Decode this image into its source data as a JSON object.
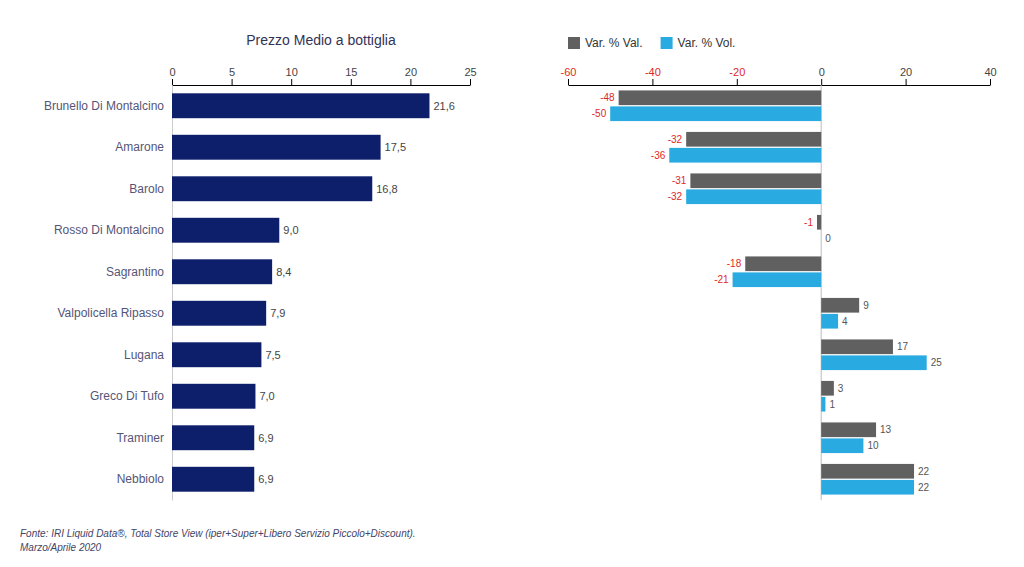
{
  "chart_data": [
    {
      "type": "bar",
      "orientation": "horizontal",
      "title": "Prezzo Medio a bottiglia",
      "categories": [
        "Brunello Di Montalcino",
        "Amarone",
        "Barolo",
        "Rosso Di Montalcino",
        "Sagrantino",
        "Valpolicella Ripasso",
        "Lugana",
        "Greco Di Tufo",
        "Traminer",
        "Nebbiolo"
      ],
      "values": [
        21.6,
        17.5,
        16.8,
        9.0,
        8.4,
        7.9,
        7.5,
        7.0,
        6.9,
        6.9
      ],
      "value_labels": [
        "21,6",
        "17,5",
        "16,8",
        "9,0",
        "8,4",
        "7,9",
        "7,5",
        "7,0",
        "6,9",
        "6,9"
      ],
      "data_labels": true,
      "color": "#0d1f6b",
      "xlim": [
        0,
        25
      ],
      "xticks": [
        0,
        5,
        10,
        15,
        20,
        25
      ],
      "annotations": [
        "Fonte: IRI Liquid Data®, Total Store View (iper+Super+Libero Servizio Piccolo+Discount).",
        "Marzo/Aprile 2020"
      ]
    },
    {
      "type": "bar",
      "orientation": "horizontal",
      "categories": [
        null,
        null,
        null,
        null,
        null,
        null,
        null,
        null,
        null,
        null
      ],
      "series": [
        {
          "name": "Var. % Val.",
          "color": "#606060",
          "values": [
            -48,
            -32,
            -31,
            -1,
            -18,
            9,
            17,
            3,
            13,
            22
          ]
        },
        {
          "name": "Var. % Vol.",
          "color": "#29abe2",
          "values": [
            -50,
            -36,
            -32,
            0,
            -21,
            4,
            25,
            1,
            10,
            22
          ]
        }
      ],
      "data_labels": true,
      "legend": "top",
      "tick_labels": "x",
      "xlim": [
        -60,
        40
      ],
      "xticks": [
        -60,
        -40,
        -20,
        0,
        20,
        40
      ]
    }
  ]
}
